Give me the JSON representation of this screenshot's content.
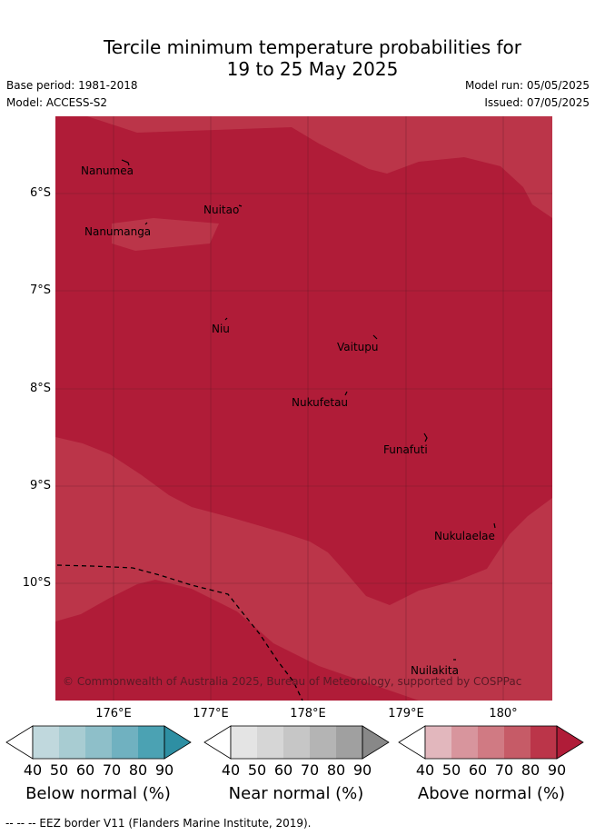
{
  "title_line1": "Tercile minimum temperature probabilities for",
  "title_line2": "19 to 25 May 2025",
  "base_period": "Base period: 1981-2018",
  "model": "Model: ACCESS-S2",
  "model_run": "Model run: 05/05/2025",
  "issued": "Issued: 07/05/2025",
  "lat_labels": [
    "6°S",
    "7°S",
    "8°S",
    "9°S",
    "10°S"
  ],
  "lon_labels": [
    "176°E",
    "177°E",
    "178°E",
    "179°E",
    "180°"
  ],
  "places": {
    "nanumea": "Nanumea",
    "nuitao": "Nuitao",
    "nanumanga": "Nanumanga",
    "niu": "Niu",
    "vaitupu": "Vaitupu",
    "nukufetau": "Nukufetau",
    "funafuti": "Funafuti",
    "nukulaelae": "Nukulaelae",
    "nuilakita": "Nuilakita"
  },
  "copyright": "© Commonwealth of Australia 2025, Bureau of Meteorology, supported by COSPPac",
  "colorbar_ticks": [
    "40",
    "50",
    "60",
    "70",
    "80",
    "90"
  ],
  "colorbars": {
    "below": {
      "title": "Below normal (%)",
      "colors": [
        "#ffffff",
        "#c0d8dd",
        "#a8ccd2",
        "#8ebfc9",
        "#70b1c0",
        "#4ba2b3",
        "#2e8fa3"
      ]
    },
    "near": {
      "title": "Near normal (%)",
      "colors": [
        "#ffffff",
        "#e4e4e4",
        "#d6d6d6",
        "#c6c6c6",
        "#b4b4b4",
        "#a0a0a0",
        "#888888"
      ]
    },
    "above": {
      "title": "Above normal (%)",
      "colors": [
        "#ffffff",
        "#e2b7bd",
        "#d8959d",
        "#d07a83",
        "#c65b67",
        "#bb3549",
        "#b01c38"
      ]
    }
  },
  "map_colors": {
    "dark": "#b01c38",
    "medium": "#bb3549"
  },
  "eez_legend": "--  --  -- EEZ border V11 (Flanders Marine Institute, 2019)."
}
